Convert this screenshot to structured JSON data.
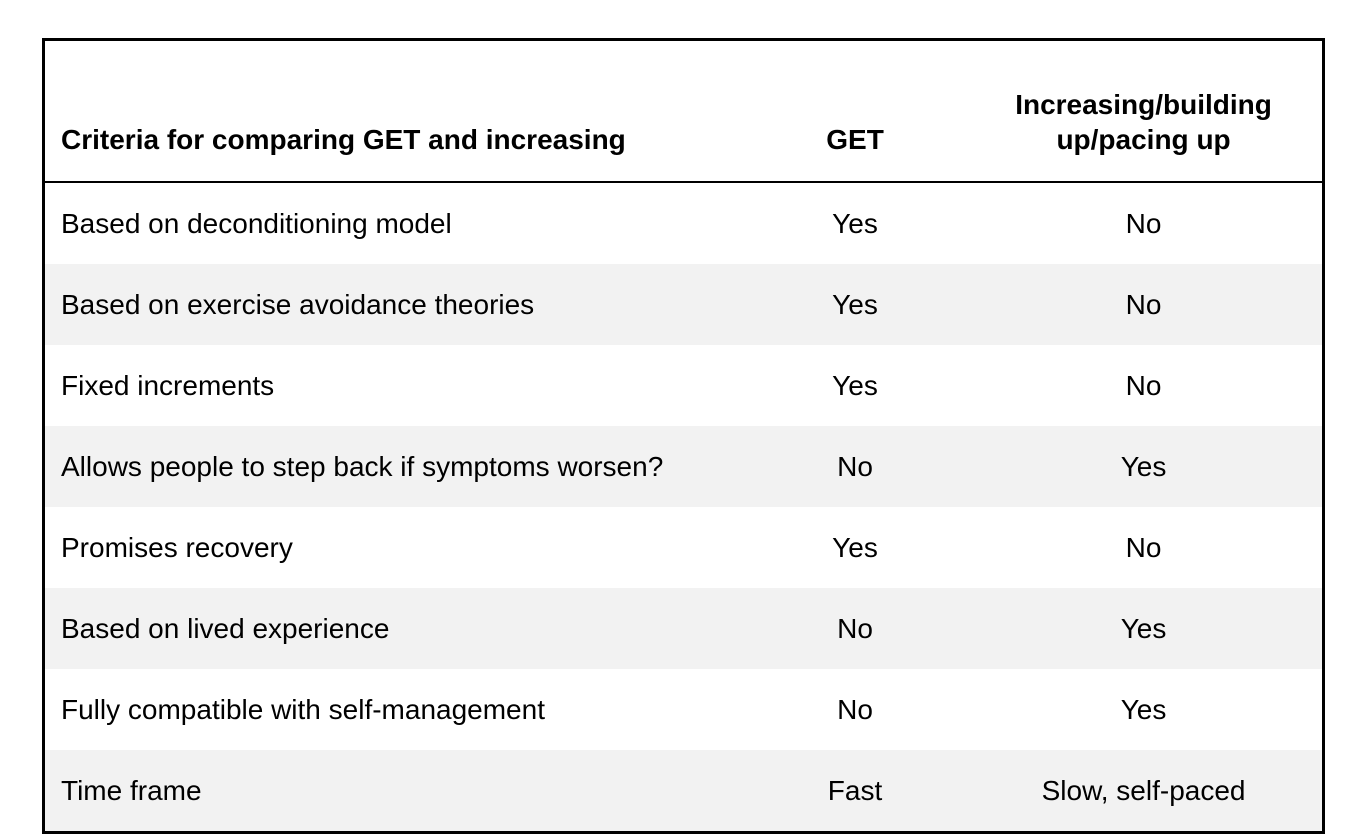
{
  "table": {
    "header": {
      "criteria": "Criteria for comparing GET and increasing",
      "get": "GET",
      "increasing": "Increasing/building up/pacing up"
    },
    "rows": [
      {
        "criteria": "Based on deconditioning model",
        "get": "Yes",
        "increasing": "No"
      },
      {
        "criteria": "Based on exercise avoidance theories",
        "get": "Yes",
        "increasing": "No"
      },
      {
        "criteria": "Fixed increments",
        "get": "Yes",
        "increasing": "No"
      },
      {
        "criteria": "Allows people to step back if symptoms worsen?",
        "get": "No",
        "increasing": "Yes"
      },
      {
        "criteria": "Promises recovery",
        "get": "Yes",
        "increasing": "No"
      },
      {
        "criteria": "Based on lived experience",
        "get": "No",
        "increasing": "Yes"
      },
      {
        "criteria": "Fully compatible with self-management",
        "get": "No",
        "increasing": "Yes"
      },
      {
        "criteria": "Time frame",
        "get": "Fast",
        "increasing": "Slow, self-paced"
      }
    ],
    "colors": {
      "alt_row_background": "#f2f2f2",
      "border": "#000000",
      "text": "#000000",
      "page_background": "#ffffff"
    }
  }
}
